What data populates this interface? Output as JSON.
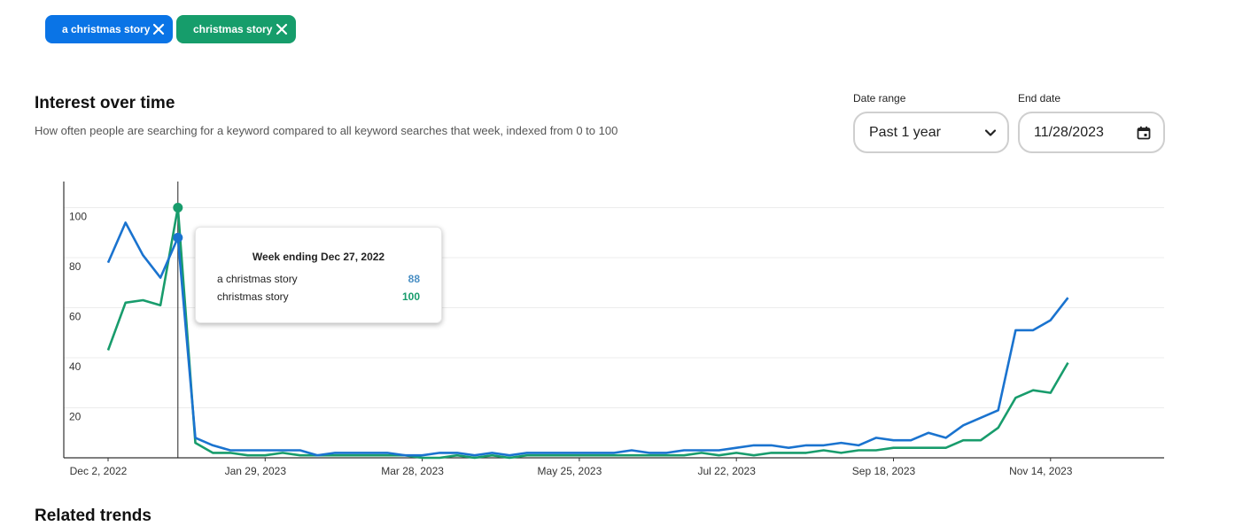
{
  "keywords": [
    {
      "label": "a christmas story",
      "color": "#0a74e6"
    },
    {
      "label": "christmas story",
      "color": "#169d6b"
    }
  ],
  "section": {
    "title": "Interest over time",
    "subtitle": "How often people are searching for a keyword compared to all keyword searches that week, indexed from 0 to 100"
  },
  "controls": {
    "date_range_label": "Date range",
    "date_range_value": "Past 1 year",
    "end_date_label": "End date",
    "end_date_value": "11/28/2023"
  },
  "tooltip": {
    "title": "Week ending Dec 27, 2022",
    "rows": [
      {
        "label": "a christmas story",
        "value": "88"
      },
      {
        "label": "christmas story",
        "value": "100"
      }
    ]
  },
  "related_heading": "Related trends",
  "chart_data": {
    "type": "line",
    "ylim": [
      0,
      110
    ],
    "yticks": [
      20,
      40,
      60,
      80,
      100
    ],
    "xtick_labels": [
      "Dec 2, 2022",
      "Jan 29, 2023",
      "Mar 28, 2023",
      "May 25, 2023",
      "Jul 22, 2023",
      "Sep 18, 2023",
      "Nov 14, 2023"
    ],
    "xtick_index": [
      0,
      9,
      18,
      27,
      36,
      45,
      54
    ],
    "highlight_index": 4,
    "series": [
      {
        "name": "a christmas story",
        "color": "#1a73cf",
        "values": [
          78,
          94,
          81,
          72,
          88,
          8,
          5,
          3,
          3,
          3,
          3,
          3,
          1,
          2,
          2,
          2,
          2,
          1,
          1,
          2,
          2,
          1,
          2,
          1,
          2,
          2,
          2,
          2,
          2,
          2,
          3,
          2,
          2,
          3,
          3,
          3,
          4,
          5,
          5,
          4,
          5,
          5,
          6,
          5,
          8,
          7,
          7,
          10,
          8,
          13,
          16,
          19,
          51,
          51,
          55,
          64
        ]
      },
      {
        "name": "christmas story",
        "color": "#189c6c",
        "values": [
          43,
          62,
          63,
          61,
          100,
          6,
          2,
          2,
          1,
          1,
          2,
          1,
          1,
          1,
          1,
          1,
          1,
          1,
          0,
          0,
          1,
          0,
          1,
          0,
          1,
          1,
          1,
          1,
          1,
          1,
          1,
          1,
          1,
          1,
          2,
          1,
          2,
          1,
          2,
          2,
          2,
          3,
          2,
          3,
          3,
          4,
          4,
          4,
          4,
          7,
          7,
          12,
          24,
          27,
          26,
          38
        ]
      }
    ]
  }
}
